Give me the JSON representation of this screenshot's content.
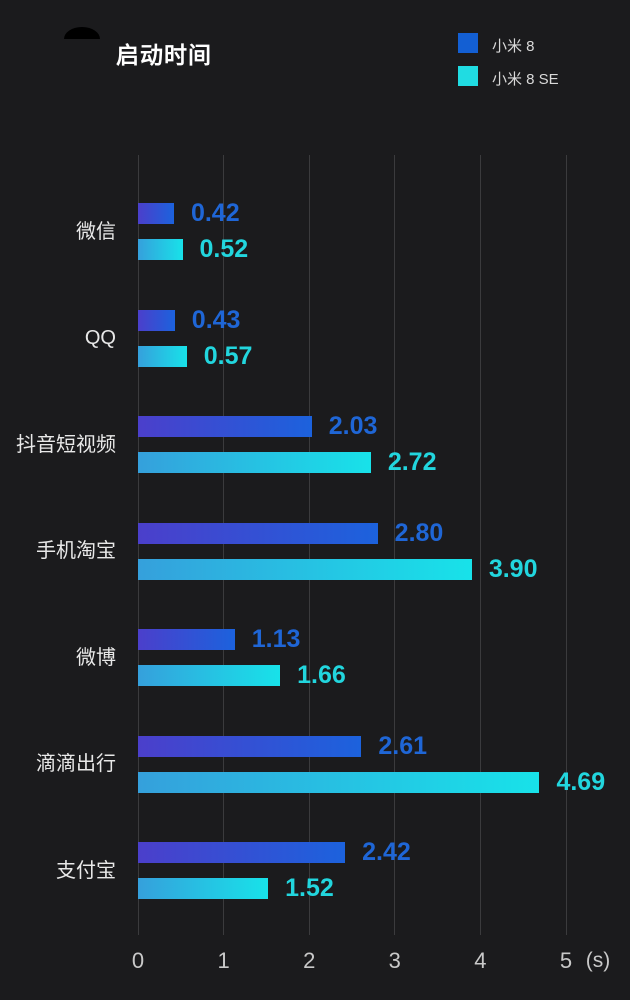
{
  "page": {
    "background": "#1b1b1d",
    "grid_color": "#3b3b3d"
  },
  "header": {
    "title": "启动时间",
    "legend": [
      {
        "label": "小米 8",
        "color": "#135fd3"
      },
      {
        "label": "小米 8 SE",
        "color": "#20dce2"
      }
    ]
  },
  "chart_data": {
    "type": "bar",
    "orientation": "horizontal",
    "title": "启动时间",
    "unit_label": "(s)",
    "categories": [
      "微信",
      "QQ",
      "抖音短视频",
      "手机淘宝",
      "微博",
      "滴滴出行",
      "支付宝"
    ],
    "series": [
      {
        "name": "小米 8",
        "values": [
          0.42,
          0.43,
          2.03,
          2.8,
          1.13,
          2.61,
          2.42
        ],
        "labels": [
          "0.42",
          "0.43",
          "2.03",
          "2.80",
          "1.13",
          "2.61",
          "2.42"
        ],
        "bar_gradient": [
          "#4b3fcb",
          "#1c62dd"
        ],
        "label_color": "#1f66d6"
      },
      {
        "name": "小米 8 SE",
        "values": [
          0.52,
          0.57,
          2.72,
          3.9,
          1.66,
          4.69,
          1.52
        ],
        "labels": [
          "0.52",
          "0.57",
          "2.72",
          "3.90",
          "1.66",
          "4.69",
          "1.52"
        ],
        "bar_gradient": [
          "#35a0dc",
          "#18e2e9"
        ],
        "label_color": "#22d6de"
      }
    ],
    "xlim": [
      0,
      5
    ],
    "xticks": [
      "0",
      "1",
      "2",
      "3",
      "4",
      "5"
    ],
    "grid": true,
    "legend_position": "top-right"
  }
}
